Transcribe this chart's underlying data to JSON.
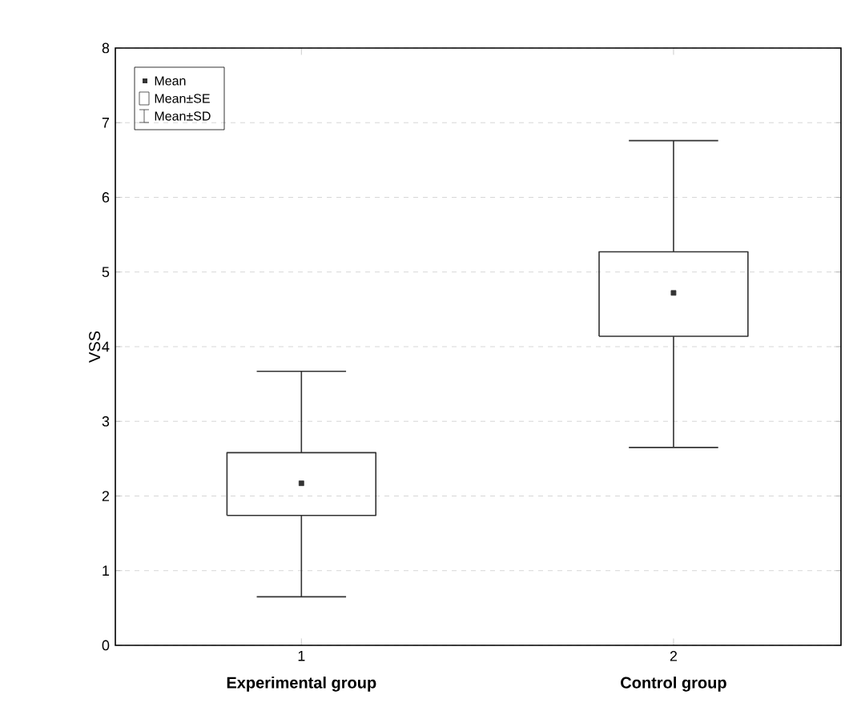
{
  "chart_data": {
    "type": "box",
    "ylabel": "VSS",
    "x": [
      1,
      2
    ],
    "xlim": [
      0.5,
      2.45
    ],
    "xticks": [
      1,
      2
    ],
    "ylim": [
      0,
      8
    ],
    "yticks": [
      0,
      1,
      2,
      3,
      4,
      5,
      6,
      7,
      8
    ],
    "grid": "y",
    "color": "#333333",
    "boxes": [
      {
        "low": 0.65,
        "q1": 1.74,
        "q3": 2.58,
        "high": 3.67,
        "mean": 2.17
      },
      {
        "low": 2.65,
        "q1": 4.14,
        "q3": 5.27,
        "high": 6.76,
        "mean": 4.72
      }
    ],
    "annotations": [
      "Mean",
      "Mean±SE",
      "Mean±SD",
      "Experimental group",
      "Control group"
    ]
  }
}
